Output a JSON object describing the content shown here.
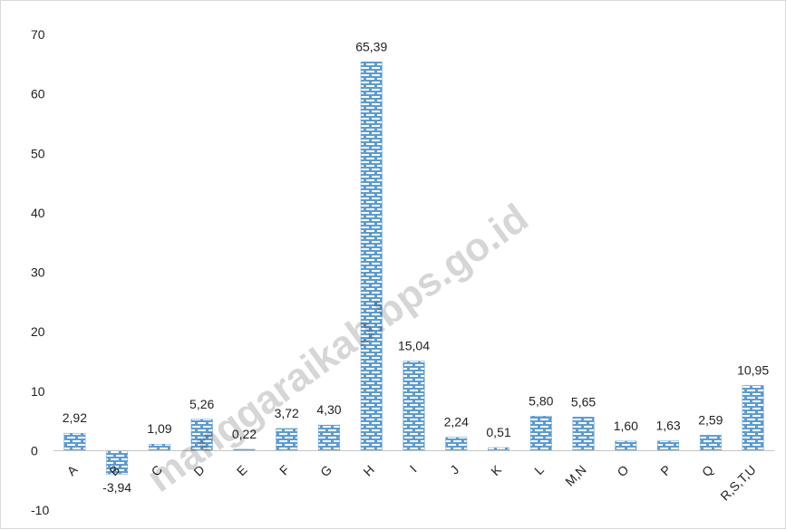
{
  "chart_data": {
    "type": "bar",
    "title": "",
    "xlabel": "",
    "ylabel": "",
    "categories": [
      "A",
      "B",
      "C",
      "D",
      "E",
      "F",
      "G",
      "H",
      "I",
      "J",
      "K",
      "L",
      "M,N",
      "O",
      "P",
      "Q",
      "R,S,T,U"
    ],
    "values": [
      2.92,
      -3.94,
      1.09,
      5.26,
      0.22,
      3.72,
      4.3,
      65.39,
      15.04,
      2.24,
      0.51,
      5.8,
      5.65,
      1.6,
      1.63,
      2.59,
      10.95
    ],
    "value_labels": [
      "2,92",
      "-3,94",
      "1,09",
      "5,26",
      "0,22",
      "3,72",
      "4,30",
      "65,39",
      "15,04",
      "2,24",
      "0,51",
      "5,80",
      "5,65",
      "1,60",
      "1,63",
      "2,59",
      "10,95"
    ],
    "ylim": [
      -10,
      70
    ],
    "yticks": [
      -10,
      0,
      10,
      20,
      30,
      40,
      50,
      60,
      70
    ],
    "grid": false,
    "legend": "none",
    "bar_color": "#5b9bd5",
    "bar_pattern": "brick"
  },
  "watermark": {
    "text": "manggaraikab.bps.go.id",
    "color": "#000000"
  }
}
